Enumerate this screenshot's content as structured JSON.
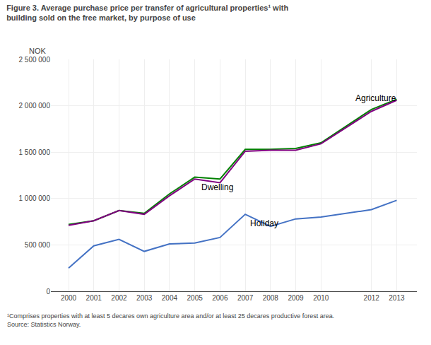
{
  "chart_data": {
    "type": "line",
    "title": "Figure 3. Average purchase price per transfer of agricultural properties¹ with\nbuilding sold on the free market, by purpose of use",
    "ylabel": "NOK",
    "footnote": "¹Comprises properties with at least 5 decares own agriculture area and/or at least 25 decares productive forest area.\nSource: Statistics Norway.",
    "x": [
      2000,
      2001,
      2002,
      2003,
      2004,
      2005,
      2006,
      2007,
      2008,
      2009,
      2010,
      2012,
      2013
    ],
    "series": [
      {
        "color": "#008000",
        "values": [
          720000,
          760000,
          870000,
          840000,
          1050000,
          1230000,
          1210000,
          1530000,
          1530000,
          1540000,
          1600000,
          1960000,
          2070000
        ]
      },
      {
        "color": "#800080",
        "values": [
          710000,
          760000,
          870000,
          830000,
          1030000,
          1210000,
          1170000,
          1510000,
          1520000,
          1520000,
          1590000,
          1940000,
          2060000
        ]
      },
      {
        "color": "#4472c4",
        "values": [
          250000,
          490000,
          560000,
          430000,
          510000,
          520000,
          580000,
          830000,
          700000,
          780000,
          800000,
          880000,
          980000
        ]
      }
    ],
    "annotations": [
      {
        "text": "Agriculture",
        "x": 2011.3,
        "y": 2010000
      },
      {
        "text": "Dwelling",
        "x": 2005.2,
        "y": 1050000
      },
      {
        "text": "Holiday",
        "x": 2007.15,
        "y": 660000
      }
    ],
    "xlim": [
      1999.3,
      2013.8
    ],
    "xticks": [
      2000,
      2001,
      2002,
      2003,
      2004,
      2005,
      2006,
      2007,
      2008,
      2009,
      2010,
      2012,
      2013
    ],
    "ylim": [
      0,
      2500000
    ],
    "yticks": [
      0,
      {
        "value": 500000,
        "label": "500 000"
      },
      {
        "value": 1000000,
        "label": "1 000 000"
      },
      {
        "value": 1500000,
        "label": "1 500 000"
      },
      {
        "value": 2000000,
        "label": "2 000 000"
      },
      {
        "value": 2500000,
        "label": "2 500 000"
      }
    ],
    "grid": true
  }
}
